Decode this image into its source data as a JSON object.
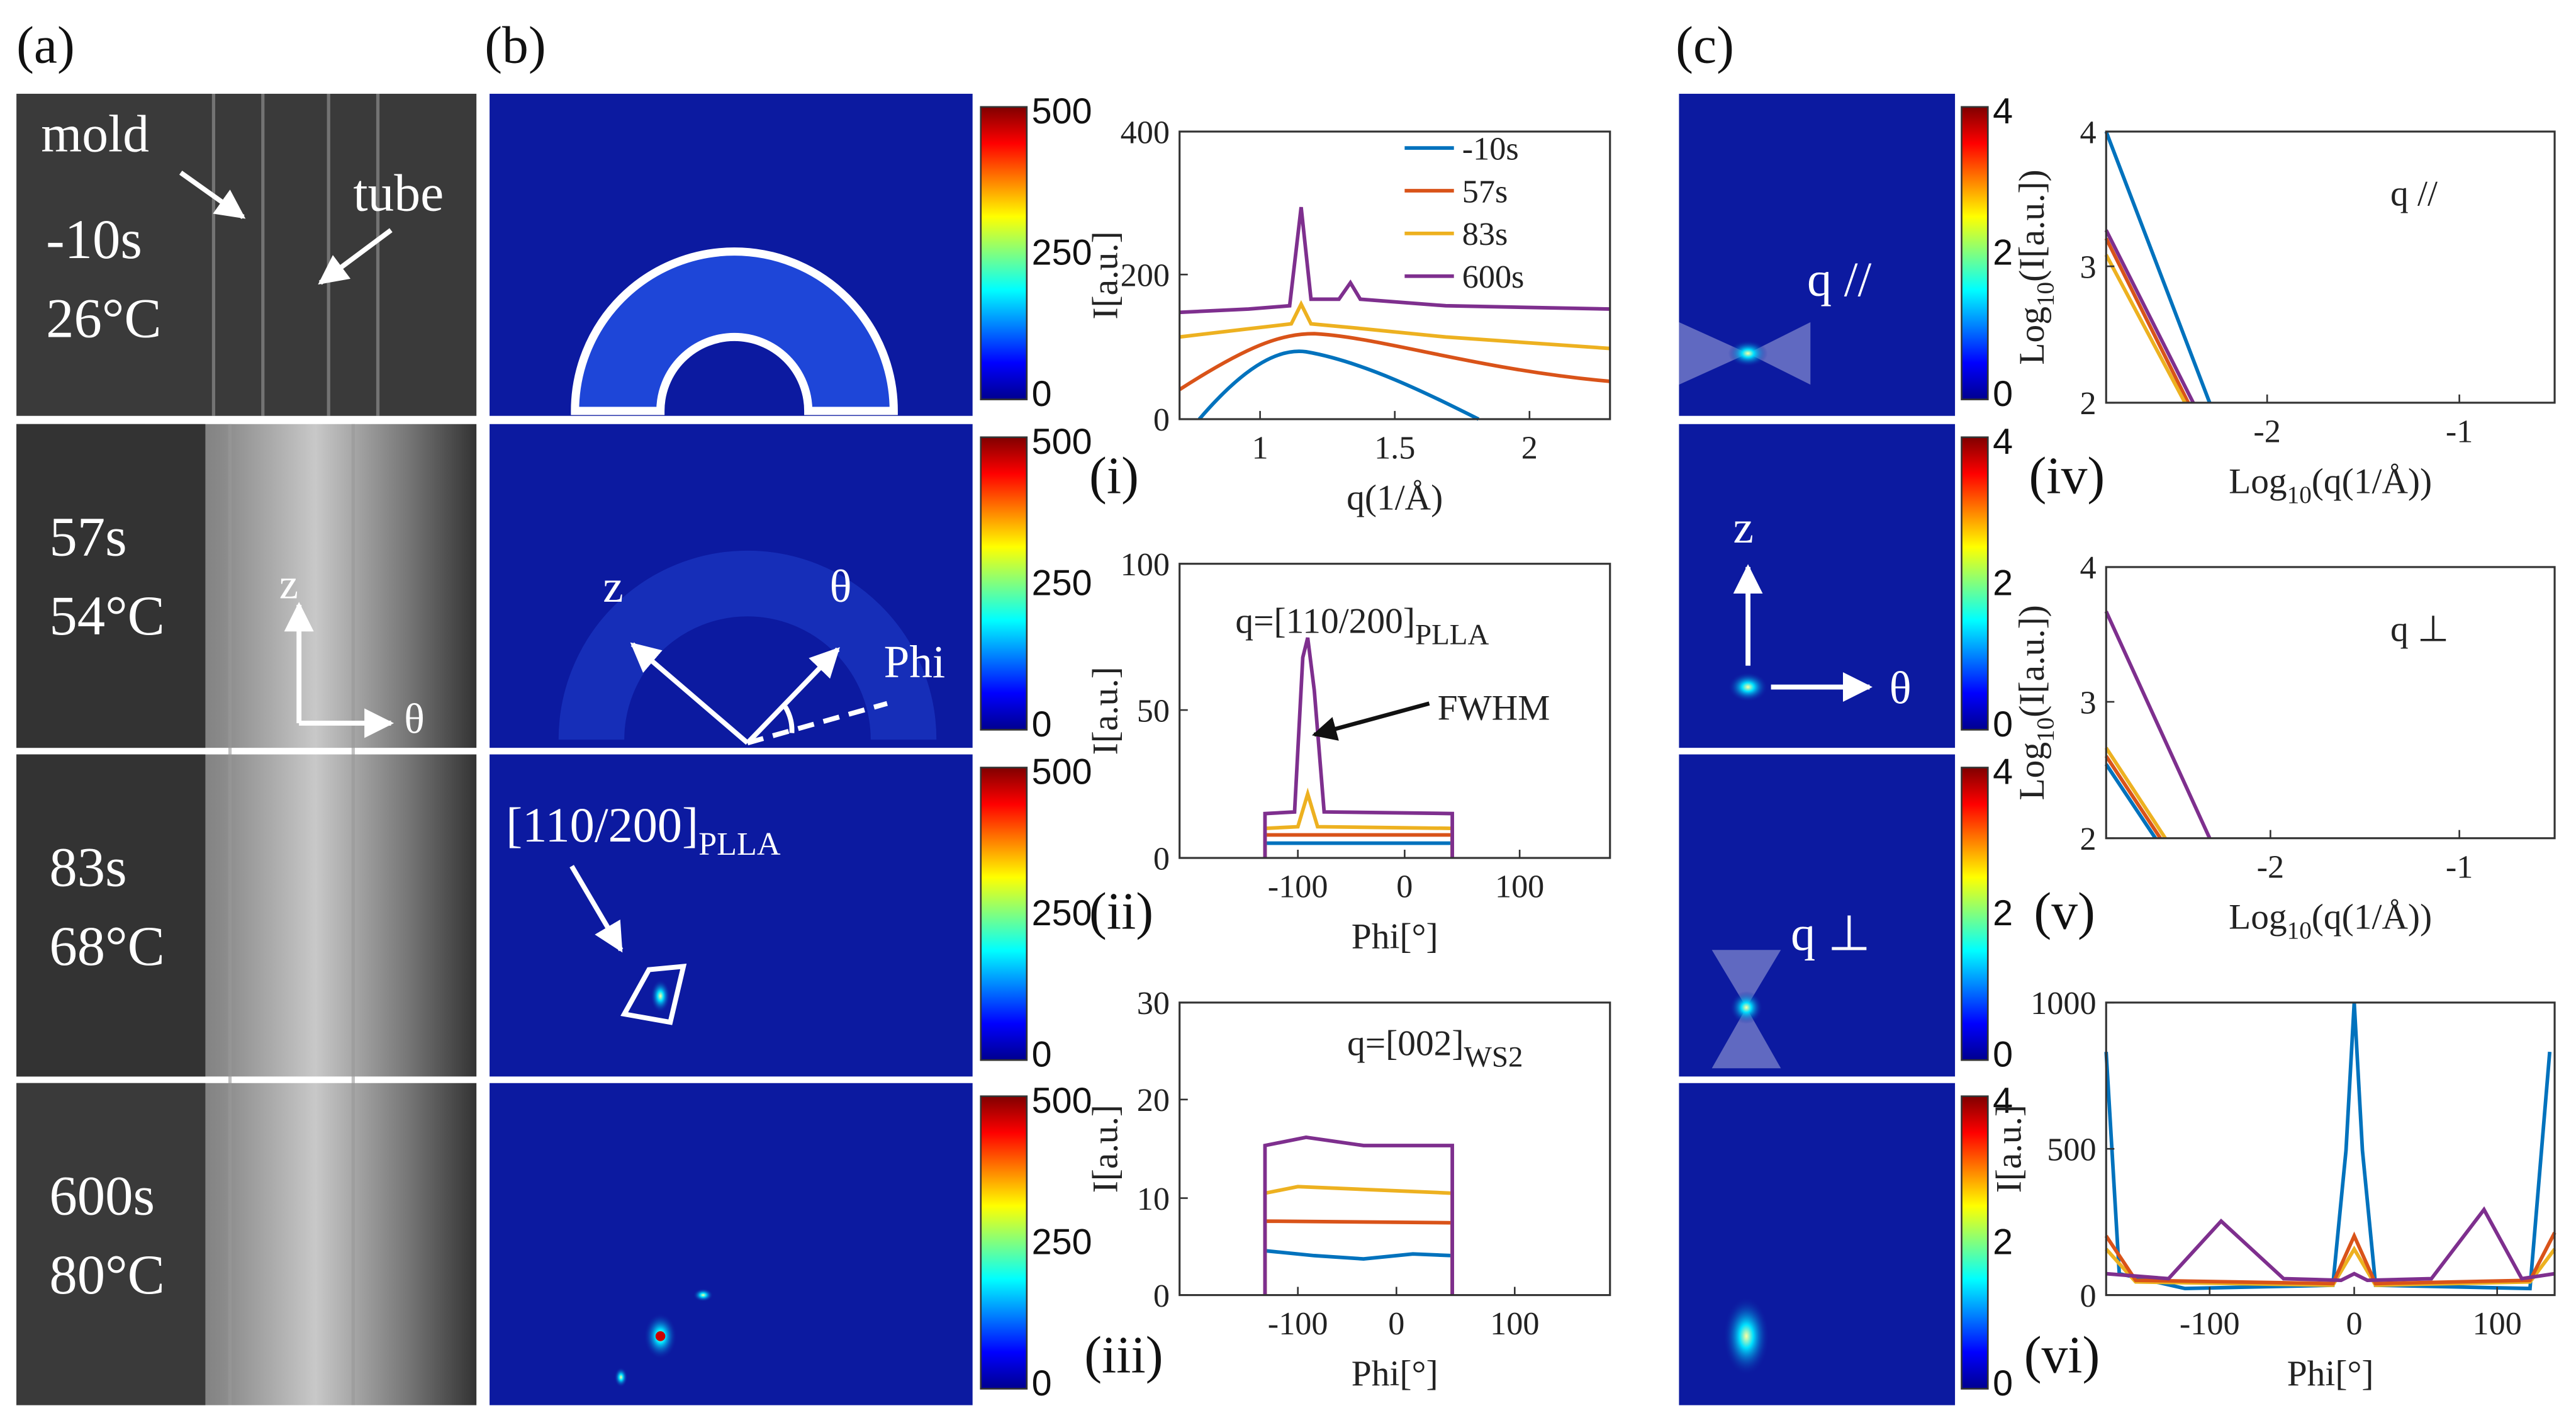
{
  "panel_labels": [
    "(a)",
    "(b)",
    "(c)"
  ],
  "panel_a": {
    "rows": [
      [
        "-10s",
        "26°C"
      ],
      [
        "57s",
        "54°C"
      ],
      [
        "83s",
        "68°C"
      ],
      [
        "600s",
        "80°C"
      ]
    ],
    "mold": "mold",
    "tube": "tube",
    "z": "z",
    "theta": "θ"
  },
  "panel_b": {
    "colorbar": [
      "500",
      "250",
      "0"
    ],
    "z": "z",
    "theta": "θ",
    "phi": "Phi",
    "peak": [
      "[110/200]",
      "PLLA"
    ]
  },
  "panel_c": {
    "colorbar": [
      "4",
      "2",
      "0"
    ],
    "q_par": "q //",
    "q_perp": "q ⊥",
    "z": "z",
    "theta": "θ"
  },
  "plots": [
    {
      "label": "(i)",
      "xlabel": [
        "q(1/Å)"
      ],
      "ylabel": [
        "I[a.u.]"
      ],
      "xticks": [
        "1",
        "1.5",
        "2"
      ],
      "yticks": [
        "0",
        "200",
        "400"
      ],
      "legend": [
        "-10s",
        "57s",
        "83s",
        "600s"
      ]
    },
    {
      "label": "(ii)",
      "xlabel": [
        "Phi[°]"
      ],
      "ylabel": [
        "I[a.u.]"
      ],
      "xticks": [
        "-100",
        "0",
        "100"
      ],
      "yticks": [
        "0",
        "50",
        "100"
      ],
      "title": [
        "q=[110/200]",
        "PLLA"
      ],
      "note": "FWHM"
    },
    {
      "label": "(iii)",
      "xlabel": [
        "Phi[°]"
      ],
      "ylabel": [
        "I[a.u.]"
      ],
      "xticks": [
        "-100",
        "0",
        "100"
      ],
      "yticks": [
        "0",
        "10",
        "20",
        "30"
      ],
      "title": [
        "q=[002]",
        "WS2"
      ]
    },
    {
      "label": "(iv)",
      "xlabel": [
        "Log",
        "10",
        "(q(1/Å))"
      ],
      "ylabel": [
        "Log",
        "10",
        "(I[a.u.])"
      ],
      "xticks": [
        "-2",
        "-1"
      ],
      "yticks": [
        "2",
        "3",
        "4"
      ],
      "title": [
        "q //"
      ]
    },
    {
      "label": "(v)",
      "xlabel": [
        "Log",
        "10",
        "(q(1/Å))"
      ],
      "ylabel": [
        "Log",
        "10",
        "(I[a.u.])"
      ],
      "xticks": [
        "-2",
        "-1"
      ],
      "yticks": [
        "2",
        "3",
        "4"
      ],
      "title": [
        "q ⊥"
      ]
    },
    {
      "label": "(vi)",
      "xlabel": [
        "Phi[°]"
      ],
      "ylabel": [
        "I[a.u.]"
      ],
      "xticks": [
        "-100",
        "0",
        "100"
      ],
      "yticks": [
        "0",
        "500",
        "1000"
      ]
    }
  ]
}
